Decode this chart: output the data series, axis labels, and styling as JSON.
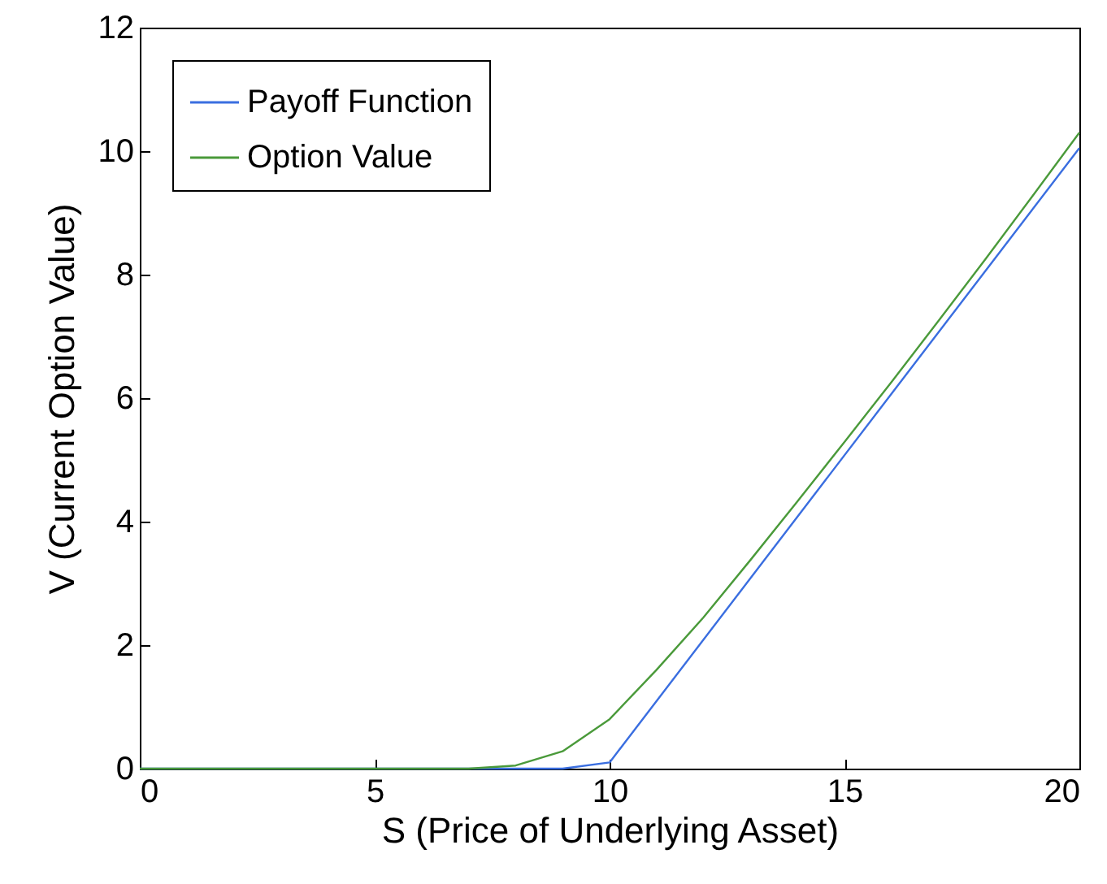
{
  "chart_data": {
    "type": "line",
    "xlabel": "S (Price of Underlying Asset)",
    "ylabel": "V (Current Option Value)",
    "xlim": [
      0,
      20
    ],
    "ylim": [
      0,
      12
    ],
    "xticks": [
      0,
      5,
      10,
      15,
      20
    ],
    "yticks": [
      0,
      2,
      4,
      6,
      8,
      10,
      12
    ],
    "grid": false,
    "legend": "top left",
    "marker": "none",
    "line_style": "solid",
    "series": [
      {
        "name": "Payoff Function",
        "color": "#3a6ee0",
        "x": [
          0,
          9,
          10,
          20
        ],
        "values": [
          0,
          0,
          0.1,
          10.05
        ]
      },
      {
        "name": "Option Value",
        "color": "#4a9a3a",
        "x": [
          0,
          7,
          8,
          9,
          10,
          11,
          12,
          13,
          14,
          15,
          16,
          17,
          18,
          19,
          20
        ],
        "values": [
          0,
          0,
          0.05,
          0.28,
          0.8,
          1.6,
          2.45,
          3.38,
          4.33,
          5.29,
          6.26,
          7.25,
          8.25,
          9.27,
          10.3
        ]
      }
    ]
  }
}
